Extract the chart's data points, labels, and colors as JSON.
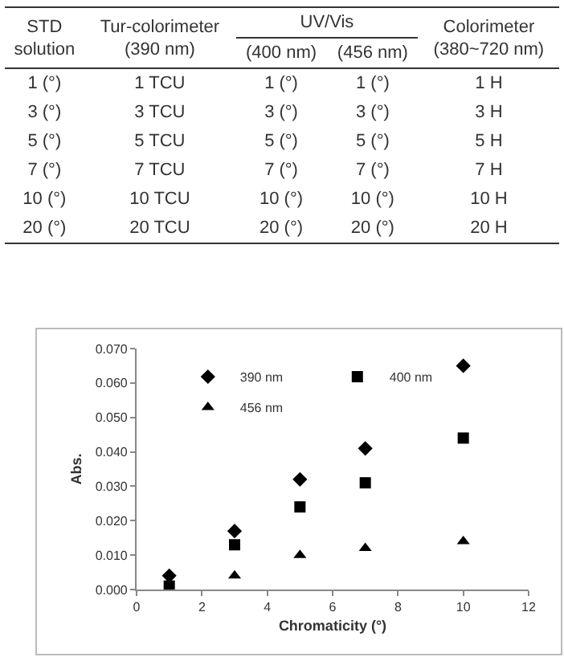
{
  "chart_data": [
    {
      "type": "other",
      "categories": [
        "STD\nsolution",
        "Tur-colorimeter\n(390 nm)",
        "(400 nm)",
        "(456 nm)",
        "Colorimeter\n(380~720 nm)"
      ],
      "annotations": [
        "UV/Vis"
      ],
      "cell_labels": [
        [
          "1 (°)",
          "1 TCU",
          "1 (°)",
          "1 (°)",
          "1 H"
        ],
        [
          "3 (°)",
          "3 TCU",
          "3 (°)",
          "3 (°)",
          "3 H"
        ],
        [
          "5 (°)",
          "5 TCU",
          "5 (°)",
          "5 (°)",
          "5 H"
        ],
        [
          "7 (°)",
          "7 TCU",
          "7 (°)",
          "7 (°)",
          "7 H"
        ],
        [
          "10 (°)",
          "10 TCU",
          "10 (°)",
          "10 (°)",
          "10 H"
        ],
        [
          "20 (°)",
          "20 TCU",
          "20 (°)",
          "20 (°)",
          "20 H"
        ]
      ]
    },
    {
      "type": "scatter",
      "xlabel": "Chromaticity (°)",
      "ylabel": "Abs.",
      "x": [
        1,
        3,
        5,
        7,
        10
      ],
      "xlim": [
        0,
        12
      ],
      "xticks": [
        0,
        2,
        4,
        6,
        8,
        10,
        12
      ],
      "ylim": [
        0,
        0.07
      ],
      "yticks": [
        {
          "value": 0,
          "label": "0.000"
        },
        {
          "value": 0.01,
          "label": "0.010"
        },
        {
          "value": 0.02,
          "label": "0.020"
        },
        {
          "value": 0.03,
          "label": "0.030"
        },
        {
          "value": 0.04,
          "label": "0.040"
        },
        {
          "value": 0.05,
          "label": "0.050"
        },
        {
          "value": 0.06,
          "label": "0.060"
        },
        {
          "value": 0.07,
          "label": "0.070"
        }
      ],
      "grid": false,
      "legend": "top left",
      "series": [
        {
          "name": "390 nm",
          "color": "#000000",
          "marker": "diamond",
          "values": [
            0.004,
            0.017,
            0.032,
            0.041,
            0.065
          ]
        },
        {
          "name": "400 nm",
          "color": "#000000",
          "marker": "square",
          "values": [
            0.001,
            0.013,
            0.024,
            0.031,
            0.044
          ]
        },
        {
          "name": "456 nm",
          "color": "#000000",
          "marker": "triangle",
          "values": [
            null,
            0.004,
            0.01,
            0.012,
            0.014
          ]
        }
      ]
    }
  ]
}
